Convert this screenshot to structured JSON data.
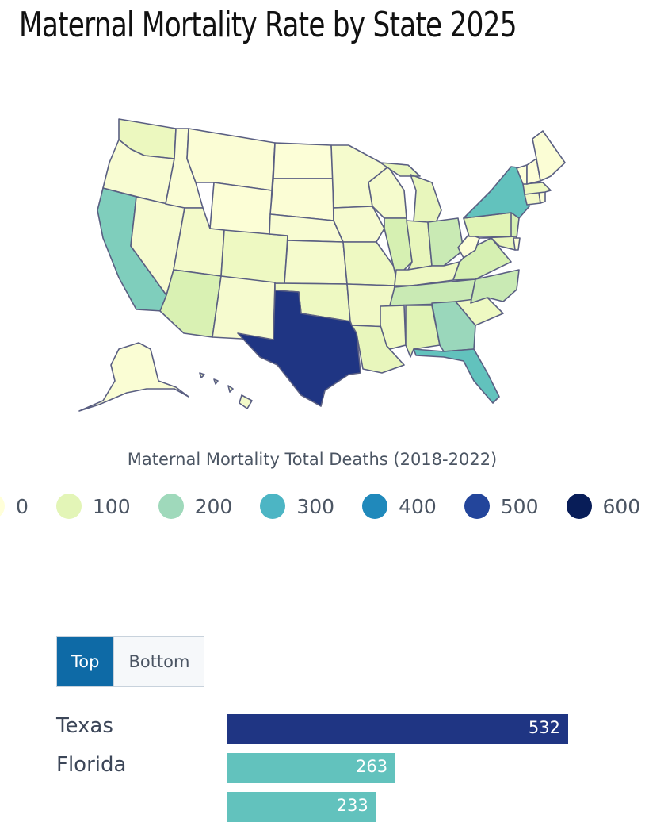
{
  "title": "Maternal Mortality Rate by State 2025",
  "legend": {
    "title": "Maternal Mortality Total Deaths (2018-2022)",
    "stops": [
      {
        "label": "0",
        "color": "#ffffd9"
      },
      {
        "label": "100",
        "color": "#e3f5b7"
      },
      {
        "label": "200",
        "color": "#9fd9bb"
      },
      {
        "label": "300",
        "color": "#4cb5c4"
      },
      {
        "label": "400",
        "color": "#2089bb"
      },
      {
        "label": "500",
        "color": "#23459b"
      },
      {
        "label": "600",
        "color": "#081d58"
      }
    ]
  },
  "ranking": {
    "tabs": [
      {
        "label": "Top",
        "active": true
      },
      {
        "label": "Bottom",
        "active": false
      }
    ],
    "scale_max": 532,
    "rows": [
      {
        "state": "Texas",
        "value": 532,
        "color": "#1f3583"
      },
      {
        "state": "Florida",
        "value": 263,
        "color": "#62c2bd"
      },
      {
        "state": "",
        "value": 233,
        "color": "#62c2bd"
      }
    ]
  },
  "chart_data": {
    "type": "heatmap",
    "title": "Maternal Mortality Rate by State 2025",
    "colorbar_title": "Maternal Mortality Total Deaths (2018-2022)",
    "colorbar_ticks": [
      0,
      100,
      200,
      300,
      400,
      500,
      600
    ],
    "range": [
      0,
      600
    ],
    "colors": {
      "WA": "#ecf8bf",
      "OR": "#f8fcd2",
      "CA": "#7fcebc",
      "NV": "#f6fbcf",
      "ID": "#fafdd4",
      "MT": "#fbfdd5",
      "WY": "#fcfed6",
      "UT": "#f3fac9",
      "CO": "#eef9c2",
      "AZ": "#d9f1b3",
      "NM": "#f6fbcf",
      "ND": "#fcfed7",
      "SD": "#fbfdd5",
      "NE": "#f8fcd2",
      "KS": "#f5fbcd",
      "OK": "#eef9c2",
      "TX": "#1f3583",
      "MN": "#f5fbcd",
      "IA": "#f6fbcf",
      "MO": "#eef9c2",
      "AR": "#f1f9c6",
      "LA": "#e8f6bc",
      "WI": "#f5fbcd",
      "IL": "#d6f0b2",
      "MI": "#e8f6bc",
      "IN": "#e8f6bc",
      "OH": "#c9eab4",
      "KY": "#eef9c2",
      "TN": "#c9eab4",
      "MS": "#eef9c2",
      "AL": "#e1f4b6",
      "GA": "#9ad7bb",
      "FL": "#62c2bd",
      "SC": "#eef9c2",
      "NC": "#c9eab4",
      "VA": "#d6f0b2",
      "WV": "#fcfed6",
      "PA": "#e1f4b6",
      "NY": "#62c2bd",
      "NJ": "#d6f0b2",
      "MD": "#e8f6bc",
      "DE": "#fcfed6",
      "CT": "#f3fac9",
      "RI": "#fcfed6",
      "MA": "#eef9c2",
      "VT": "#fcfed7",
      "NH": "#fcfed7",
      "ME": "#fbfdd5",
      "AK": "#fafdd4",
      "HI": "#f3fac9"
    }
  }
}
